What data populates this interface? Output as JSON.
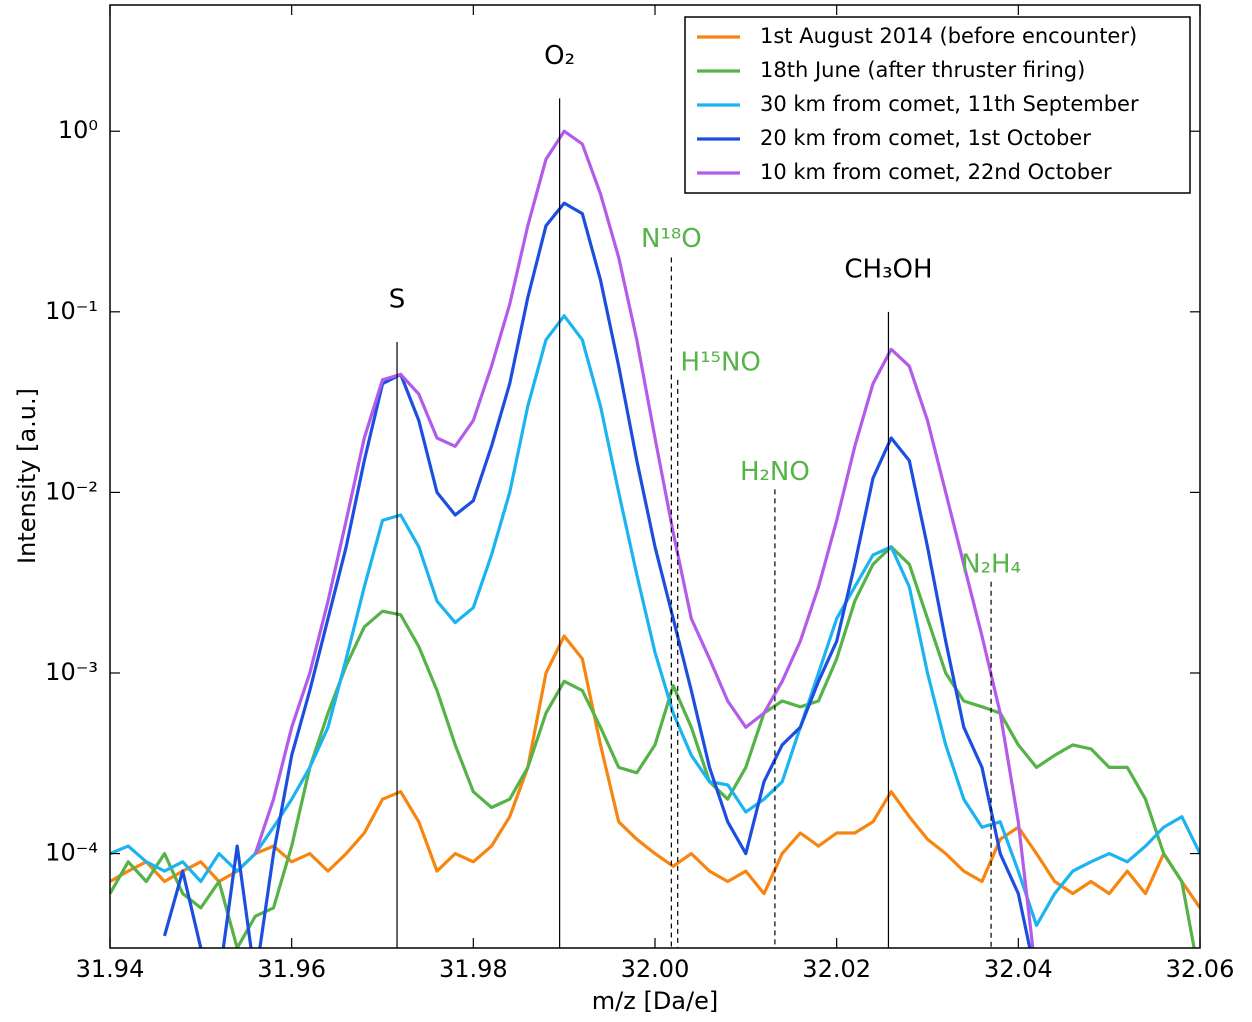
{
  "chart_data": {
    "type": "line",
    "xlabel": "m/z [Da/e]",
    "ylabel": "Intensity [a.u.]",
    "log_y": true,
    "legend": "upper right",
    "xlim": [
      31.94,
      32.06
    ],
    "ylim": [
      3e-05,
      5
    ],
    "xticks": [
      31.94,
      31.96,
      31.98,
      {
        "value": 32,
        "label": "32.00"
      },
      32.02,
      32.04,
      32.06
    ],
    "yticks": [
      {
        "value": 0.0001,
        "label": "10⁻⁴"
      },
      {
        "value": 0.001,
        "label": "10⁻³"
      },
      {
        "value": 0.01,
        "label": "10⁻²"
      },
      {
        "value": 0.1,
        "label": "10⁻¹"
      },
      {
        "value": 1,
        "label": "10⁰"
      }
    ],
    "x": [
      31.94,
      31.942,
      31.944,
      31.946,
      31.948,
      31.95,
      31.952,
      31.954,
      31.956,
      31.958,
      31.96,
      31.962,
      31.964,
      31.966,
      31.968,
      31.97,
      31.972,
      31.974,
      31.976,
      31.978,
      31.98,
      31.982,
      31.984,
      31.986,
      31.988,
      31.99,
      31.992,
      31.994,
      31.996,
      31.998,
      32.0,
      32.002,
      32.004,
      32.006,
      32.008,
      32.01,
      32.012,
      32.014,
      32.016,
      32.018,
      32.02,
      32.022,
      32.024,
      32.026,
      32.028,
      32.03,
      32.032,
      32.034,
      32.036,
      32.038,
      32.04,
      32.042,
      32.044,
      32.046,
      32.048,
      32.05,
      32.052,
      32.054,
      32.056,
      32.058,
      32.06
    ],
    "series": [
      {
        "name": "1st August 2014 (before encounter)",
        "color": "#f7850f",
        "values": [
          7e-05,
          8e-05,
          9e-05,
          7e-05,
          8e-05,
          9e-05,
          7e-05,
          8e-05,
          0.0001,
          0.00011,
          9e-05,
          0.0001,
          8e-05,
          0.0001,
          0.00013,
          0.0002,
          0.00022,
          0.00015,
          8e-05,
          0.0001,
          9e-05,
          0.00011,
          0.00016,
          0.0003,
          0.001,
          0.0016,
          0.0012,
          0.0004,
          0.00015,
          0.00012,
          0.0001,
          8.5e-05,
          0.0001,
          8e-05,
          7e-05,
          8e-05,
          6e-05,
          0.0001,
          0.00013,
          0.00011,
          0.00013,
          0.00013,
          0.00015,
          0.00022,
          0.00016,
          0.00012,
          0.0001,
          8e-05,
          7e-05,
          0.00012,
          0.00014,
          0.0001,
          7e-05,
          6e-05,
          7e-05,
          6e-05,
          8e-05,
          6e-05,
          0.0001,
          7e-05,
          5e-05
        ]
      },
      {
        "name": "18th June (after thruster firing)",
        "color": "#55b348",
        "values": [
          6e-05,
          9e-05,
          7e-05,
          0.0001,
          6e-05,
          5e-05,
          7e-05,
          3e-05,
          4.5e-05,
          5e-05,
          0.00011,
          0.0003,
          0.0006,
          0.0011,
          0.0018,
          0.0022,
          0.0021,
          0.0014,
          0.0008,
          0.0004,
          0.00022,
          0.00018,
          0.0002,
          0.0003,
          0.0006,
          0.0009,
          0.0008,
          0.0005,
          0.0003,
          0.00028,
          0.0004,
          0.00085,
          0.0005,
          0.00025,
          0.0002,
          0.0003,
          0.0006,
          0.0007,
          0.00065,
          0.0007,
          0.0012,
          0.0025,
          0.004,
          0.005,
          0.004,
          0.002,
          0.001,
          0.0007,
          0.00065,
          0.0006,
          0.0004,
          0.0003,
          0.00035,
          0.0004,
          0.00038,
          0.0003,
          0.0003,
          0.0002,
          0.0001,
          7e-05,
          2e-05
        ]
      },
      {
        "name": "30 km from comet, 11th September",
        "color": "#1cb4f0",
        "values": [
          0.0001,
          0.00011,
          9e-05,
          8e-05,
          9e-05,
          7e-05,
          0.0001,
          8e-05,
          0.0001,
          0.00014,
          0.0002,
          0.0003,
          0.0005,
          0.0012,
          0.003,
          0.007,
          0.0075,
          0.005,
          0.0025,
          0.0019,
          0.0023,
          0.0045,
          0.01,
          0.03,
          0.07,
          0.095,
          0.07,
          0.03,
          0.01,
          0.0035,
          0.0013,
          0.0006,
          0.00035,
          0.00025,
          0.00024,
          0.00017,
          0.0002,
          0.00025,
          0.0005,
          0.001,
          0.002,
          0.003,
          0.0045,
          0.005,
          0.003,
          0.001,
          0.0004,
          0.0002,
          0.00014,
          0.00015,
          8e-05,
          4e-05,
          6e-05,
          8e-05,
          9e-05,
          0.0001,
          9e-05,
          0.00011,
          0.00014,
          0.00016,
          0.0001
        ]
      },
      {
        "name": "20 km from comet, 1st October",
        "color": "#1c4fe0",
        "values": [
          null,
          null,
          null,
          3.5e-05,
          8e-05,
          3e-05,
          2e-05,
          0.00011,
          2e-05,
          0.0001,
          0.00035,
          0.0008,
          0.002,
          0.005,
          0.015,
          0.04,
          0.045,
          0.025,
          0.01,
          0.0075,
          0.009,
          0.018,
          0.04,
          0.12,
          0.3,
          0.4,
          0.35,
          0.15,
          0.05,
          0.015,
          0.005,
          0.002,
          0.0008,
          0.0003,
          0.00015,
          0.0001,
          0.00025,
          0.0004,
          0.0005,
          0.0009,
          0.0015,
          0.004,
          0.012,
          0.02,
          0.015,
          0.005,
          0.0015,
          0.0005,
          0.0003,
          0.0001,
          6e-05,
          2e-05,
          null,
          null,
          null,
          null,
          null,
          null,
          null,
          null,
          null
        ]
      },
      {
        "name": "10 km from comet, 22nd October",
        "color": "#b25ce9",
        "values": [
          null,
          null,
          null,
          null,
          null,
          null,
          null,
          null,
          0.0001,
          0.0002,
          0.0005,
          0.001,
          0.0025,
          0.007,
          0.02,
          0.042,
          0.045,
          0.035,
          0.02,
          0.018,
          0.025,
          0.05,
          0.11,
          0.3,
          0.7,
          1.0,
          0.85,
          0.45,
          0.2,
          0.07,
          0.02,
          0.006,
          0.002,
          0.0012,
          0.0007,
          0.0005,
          0.0006,
          0.0009,
          0.0015,
          0.003,
          0.007,
          0.018,
          0.04,
          0.062,
          0.05,
          0.025,
          0.01,
          0.004,
          0.0016,
          0.0006,
          0.00015,
          2e-05,
          null,
          null,
          null,
          null,
          null,
          null,
          null,
          null,
          null
        ]
      }
    ],
    "annotations": [
      {
        "text": "S",
        "x": 31.9716,
        "y": 0.068,
        "color": "#000000",
        "dashed": false
      },
      {
        "text": "O₂",
        "x": 31.9895,
        "y": 1.52,
        "color": "#000000",
        "dashed": false
      },
      {
        "text": "CH₃OH",
        "x": 32.0257,
        "y": 0.1,
        "color": "#000000",
        "dashed": false
      },
      {
        "text": "N¹⁸O",
        "x": 32.0018,
        "y": 0.2,
        "color": "#55b348",
        "dashed": true
      },
      {
        "text": "H¹⁵NO",
        "x": 32.0025,
        "y": 0.042,
        "color": "#55b348",
        "dashed": true
      },
      {
        "text": "H₂NO",
        "x": 32.0132,
        "y": 0.0104,
        "color": "#55b348",
        "dashed": true
      },
      {
        "text": "N₂H₄",
        "x": 32.037,
        "y": 0.0032,
        "color": "#55b348",
        "dashed": true
      }
    ]
  }
}
